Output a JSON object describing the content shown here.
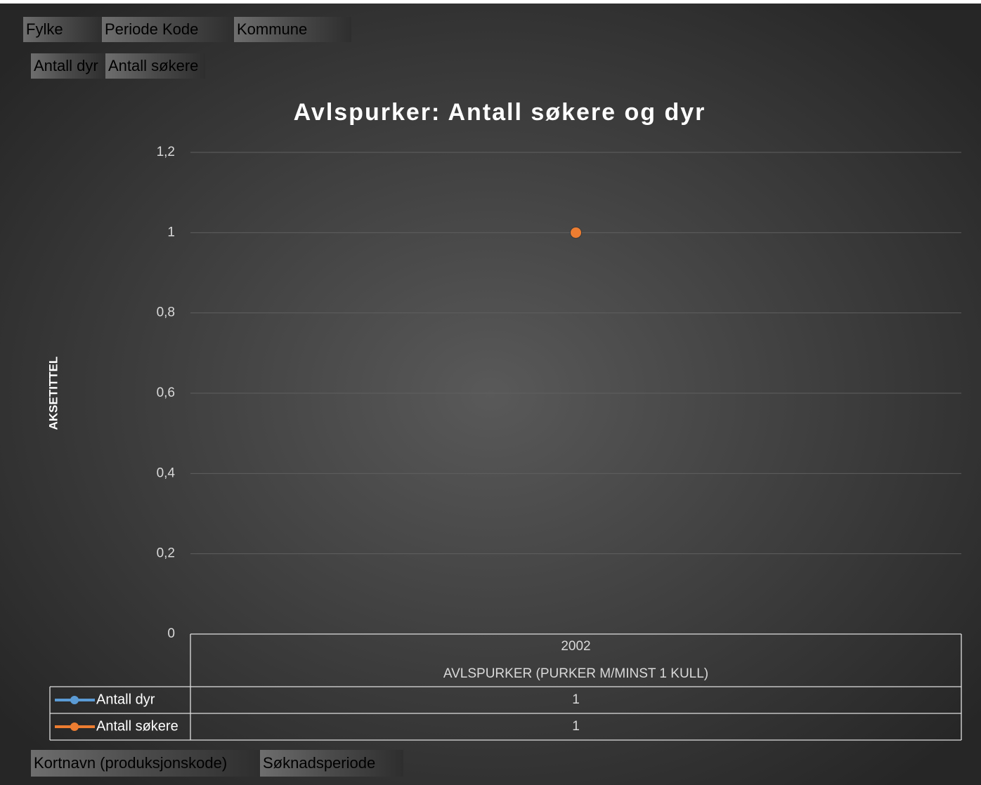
{
  "chart_data": {
    "type": "line",
    "title": "Avlspurker: Antall søkere og dyr",
    "y_axis_label": "AKSETITTEL",
    "categories": [
      "2002"
    ],
    "category_group": "AVLSPURKER (PURKER M/MINST 1 KULL)",
    "series": [
      {
        "name": "Antall dyr",
        "color": "#5b9bd5",
        "values": [
          1
        ]
      },
      {
        "name": "Antall søkere",
        "color": "#ed7d31",
        "values": [
          1
        ]
      }
    ],
    "ylim": [
      0,
      1.2
    ],
    "yticks": [
      0,
      {
        "value": 0.2,
        "label": "0,2"
      },
      {
        "value": 0.4,
        "label": "0,4"
      },
      {
        "value": 0.6,
        "label": "0,6"
      },
      {
        "value": 0.8,
        "label": "0,8"
      },
      1,
      {
        "value": 1.2,
        "label": "1,2"
      }
    ],
    "grid": true,
    "data_table": true
  },
  "pivot_buttons": {
    "filters": [
      "Fylke",
      "Periode Kode",
      "Kommune"
    ],
    "values": [
      "Antall dyr",
      "Antall søkere"
    ],
    "axis": [
      "Kortnavn (produksjonskode)",
      "Søknadsperiode"
    ]
  }
}
